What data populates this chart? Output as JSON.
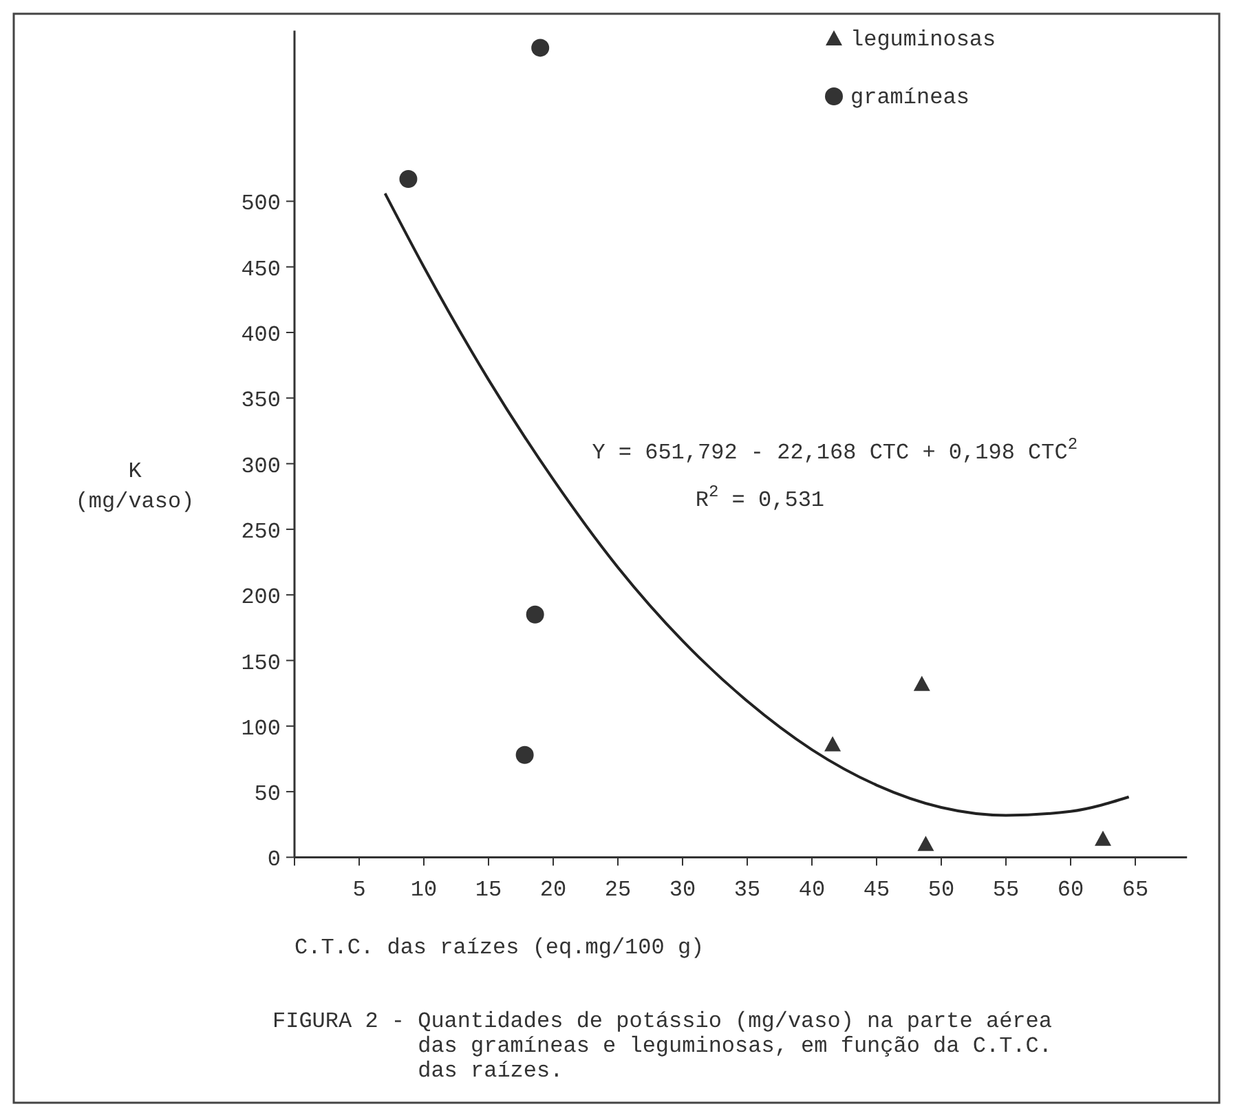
{
  "chart_data": {
    "type": "scatter",
    "xlabel": "C.T.C. das raízes (eq.mg/100 g)",
    "ylabel": "K (mg/vaso)",
    "xlim": [
      0,
      69
    ],
    "ylim": [
      0,
      630
    ],
    "xticks": [
      {
        "value": 0,
        "label": null
      },
      5,
      10,
      15,
      20,
      25,
      30,
      35,
      40,
      45,
      50,
      55,
      60,
      65
    ],
    "yticks": [
      0,
      50,
      100,
      150,
      200,
      250,
      300,
      350,
      400,
      450,
      500
    ],
    "grid": false,
    "legend": "top right",
    "series": [
      {
        "name": "leguminosas",
        "marker": "triangle",
        "color": "#333333",
        "x": [
          41.6,
          48.5,
          48.8,
          62.5
        ],
        "values": [
          86,
          132,
          10,
          14
        ]
      },
      {
        "name": "gramíneas",
        "marker": "circle",
        "color": "#333333",
        "x": [
          8.8,
          17.8,
          18.6,
          19.0
        ],
        "values": [
          517,
          78,
          185,
          617
        ]
      },
      {
        "type": "line",
        "marker": "none",
        "line_style": "solid",
        "color": "#222222",
        "x": [
          7,
          10,
          15,
          20,
          25,
          30,
          35,
          40,
          45,
          50,
          55,
          60,
          64.5
        ],
        "values": [
          506,
          450,
          364,
          288,
          221,
          165,
          119,
          82,
          55,
          38,
          32,
          35,
          46
        ]
      }
    ],
    "annotations": [
      "Y = 651,792 - 22,168 CTC + 0,198 CTC$^{2}$",
      "R$^{2}$ = 0,531",
      "FIGURA 2 - Quantidades de potássio (mg/vaso) na parte aérea das gramíneas e leguminosas, em função da C.T.C. das raízes."
    ]
  }
}
